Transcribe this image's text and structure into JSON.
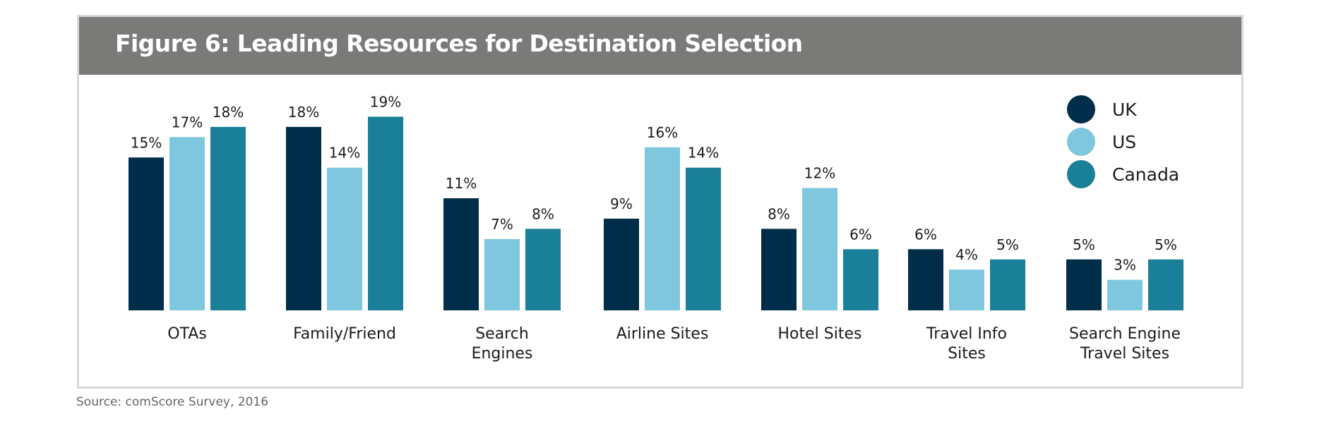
{
  "figure_title": "Figure 6: Leading Resources for Destination Selection",
  "source": "Source: comScore Survey, 2016",
  "colors": {
    "UK": "#002d4a",
    "US": "#7fc7de",
    "Canada": "#1a7f98"
  },
  "chart_data": {
    "type": "bar",
    "title": "Figure 6: Leading Resources for Destination Selection",
    "categories": [
      "OTAs",
      "Family/Friend",
      "Search Engines",
      "Airline Sites",
      "Hotel Sites",
      "Travel Info Sites",
      "Search Engine Travel Sites"
    ],
    "category_lines": [
      [
        "OTAs"
      ],
      [
        "Family/Friend"
      ],
      [
        "Search",
        "Engines"
      ],
      [
        "Airline Sites"
      ],
      [
        "Hotel Sites"
      ],
      [
        "Travel Info",
        "Sites"
      ],
      [
        "Search Engine",
        "Travel Sites"
      ]
    ],
    "series": [
      {
        "name": "UK",
        "values": [
          15,
          18,
          11,
          9,
          8,
          6,
          5
        ],
        "labels": [
          "15%",
          "18%",
          "11%",
          "9%",
          "8%",
          "6%",
          "5%"
        ]
      },
      {
        "name": "US",
        "values": [
          17,
          14,
          7,
          16,
          12,
          4,
          3
        ],
        "labels": [
          "17%",
          "14%",
          "7%",
          "16%",
          "12%",
          "4%",
          "3%"
        ]
      },
      {
        "name": "Canada",
        "values": [
          18,
          19,
          8,
          14,
          6,
          5,
          5
        ],
        "labels": [
          "18%",
          "19%",
          "8%",
          "14%",
          "6%",
          "5%",
          "5%"
        ]
      }
    ],
    "xlabel": "",
    "ylabel": "",
    "ylim": [
      0,
      20
    ],
    "grid": false,
    "legend": "top-right"
  }
}
